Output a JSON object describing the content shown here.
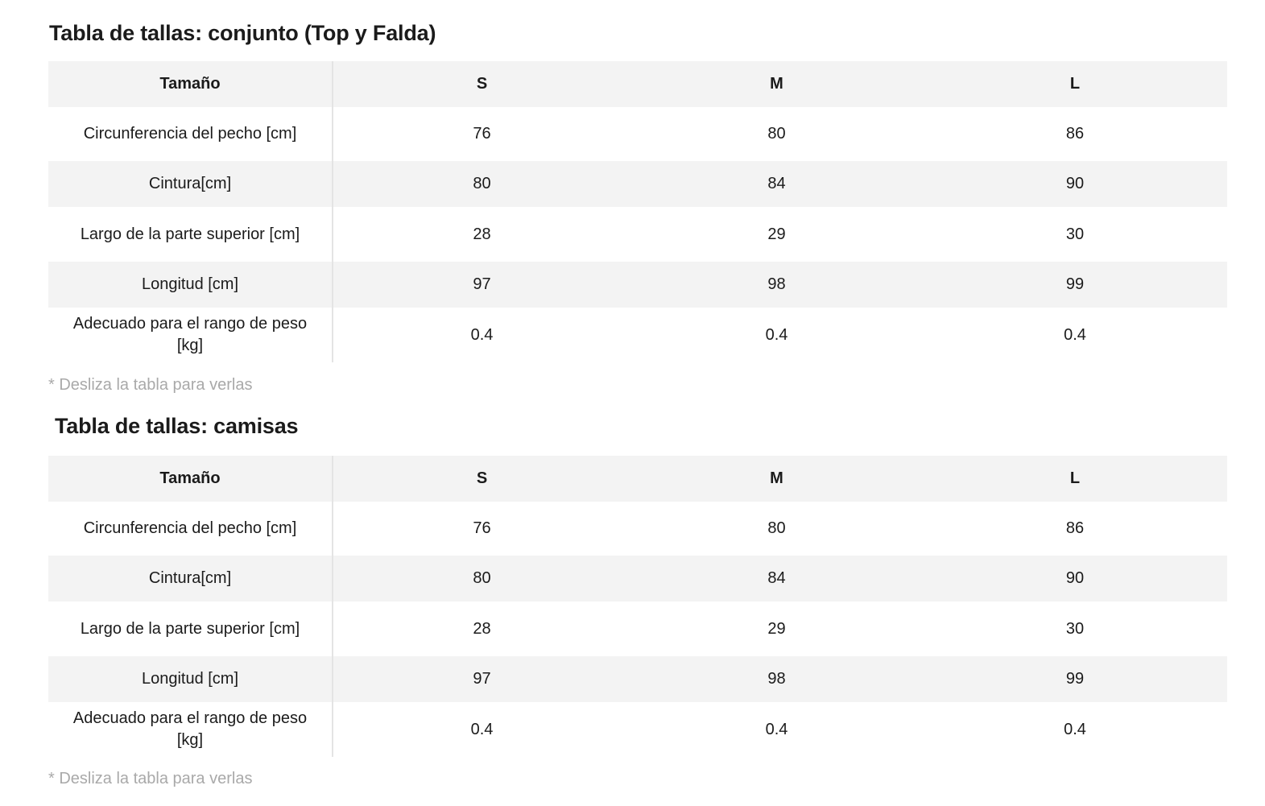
{
  "tables": [
    {
      "title": "Tabla de tallas: conjunto (Top y Falda)",
      "header": [
        "Tamaño",
        "S",
        "M",
        "L"
      ],
      "rows": [
        {
          "label": "Circunferencia del pecho [cm]",
          "values": [
            "76",
            "80",
            "86"
          ]
        },
        {
          "label": "Cintura[cm]",
          "values": [
            "80",
            "84",
            "90"
          ]
        },
        {
          "label": "Largo de la parte superior [cm]",
          "values": [
            "28",
            "29",
            "30"
          ]
        },
        {
          "label": "Longitud [cm]",
          "values": [
            "97",
            "98",
            "99"
          ]
        },
        {
          "label": "Adecuado para el rango de peso [kg]",
          "values": [
            "0.4",
            "0.4",
            "0.4"
          ]
        }
      ],
      "hint": "* Desliza la tabla para verlas"
    },
    {
      "title": "Tabla de tallas: camisas",
      "header": [
        "Tamaño",
        "S",
        "M",
        "L"
      ],
      "rows": [
        {
          "label": "Circunferencia del pecho [cm]",
          "values": [
            "76",
            "80",
            "86"
          ]
        },
        {
          "label": "Cintura[cm]",
          "values": [
            "80",
            "84",
            "90"
          ]
        },
        {
          "label": "Largo de la parte superior [cm]",
          "values": [
            "28",
            "29",
            "30"
          ]
        },
        {
          "label": "Longitud [cm]",
          "values": [
            "97",
            "98",
            "99"
          ]
        },
        {
          "label": "Adecuado para el rango de peso [kg]",
          "values": [
            "0.4",
            "0.4",
            "0.4"
          ]
        }
      ],
      "hint": "* Desliza la tabla para verlas"
    }
  ]
}
